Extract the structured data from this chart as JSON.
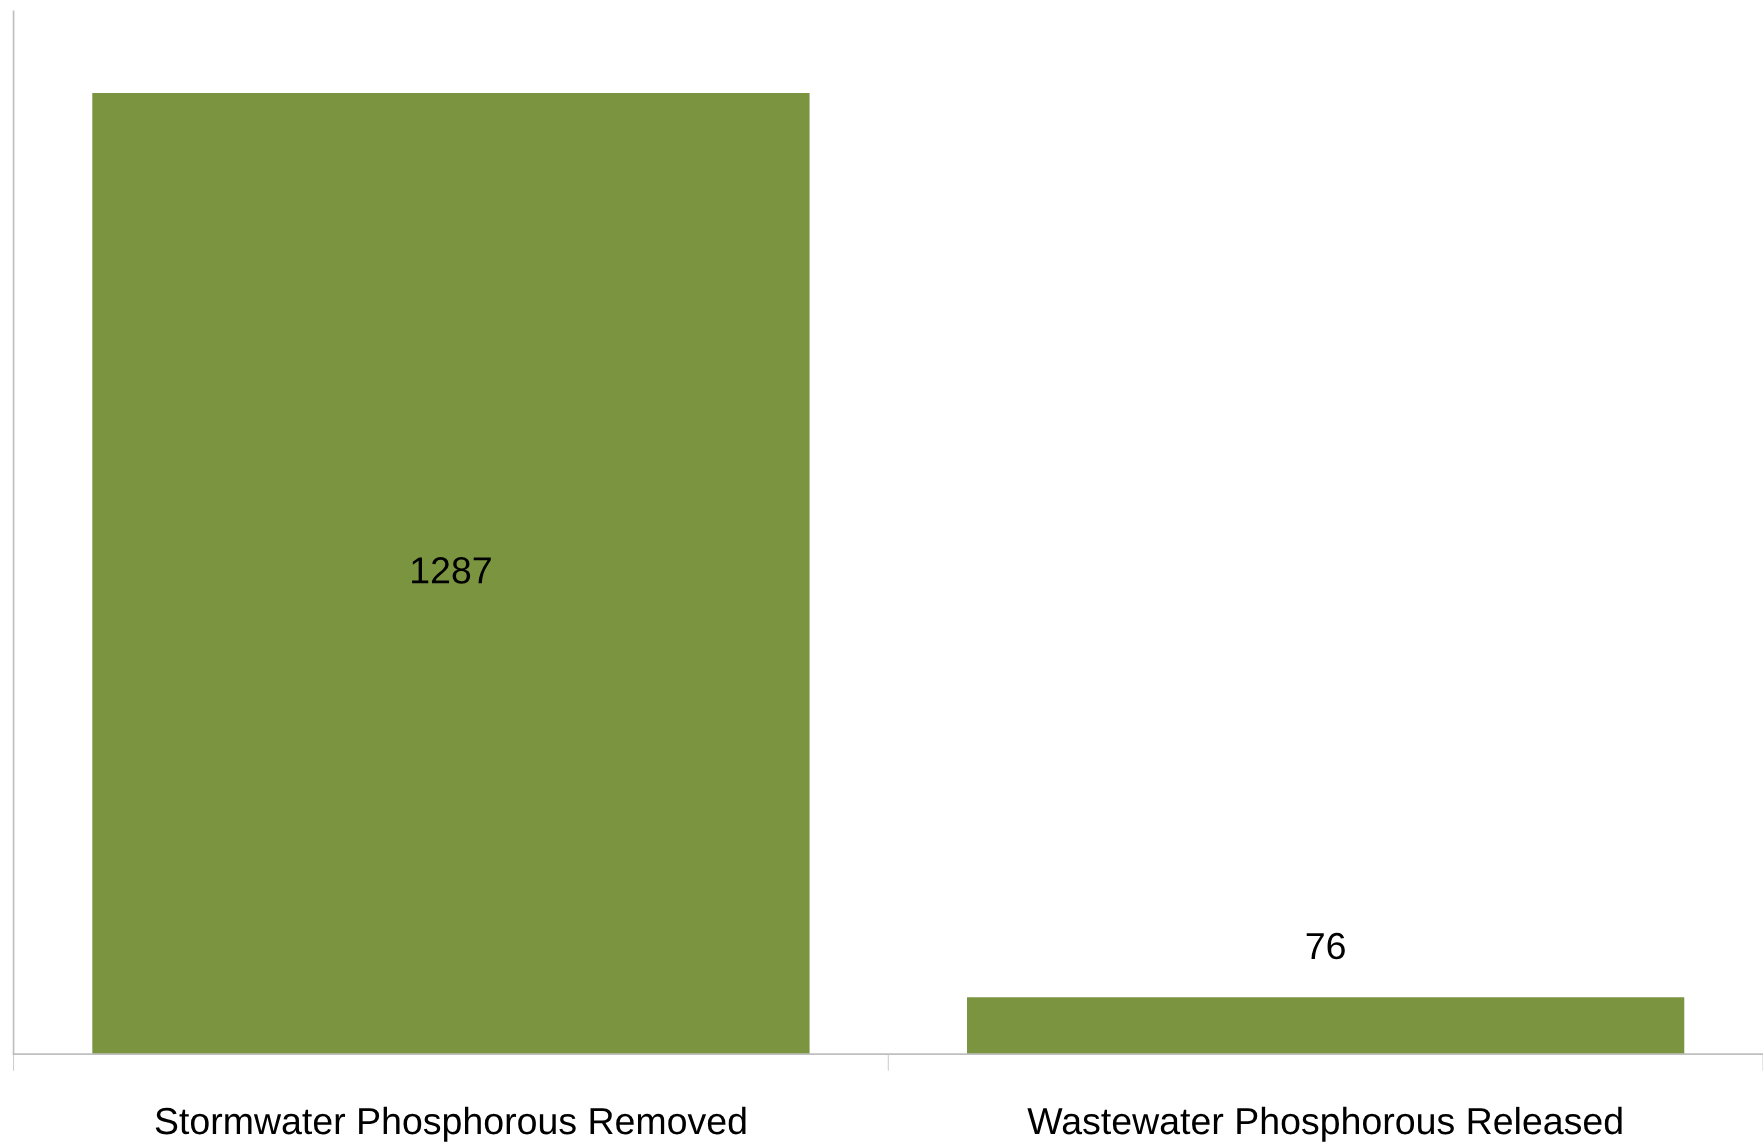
{
  "chart_data": {
    "type": "bar",
    "categories": [
      "Stormwater Phosphorous Removed",
      "Wastewater Phosphorous Released"
    ],
    "values": [
      1287,
      76
    ],
    "color": "#7a9440",
    "data_labels": true,
    "grid": false,
    "legend": false,
    "tick_labels": "x"
  }
}
